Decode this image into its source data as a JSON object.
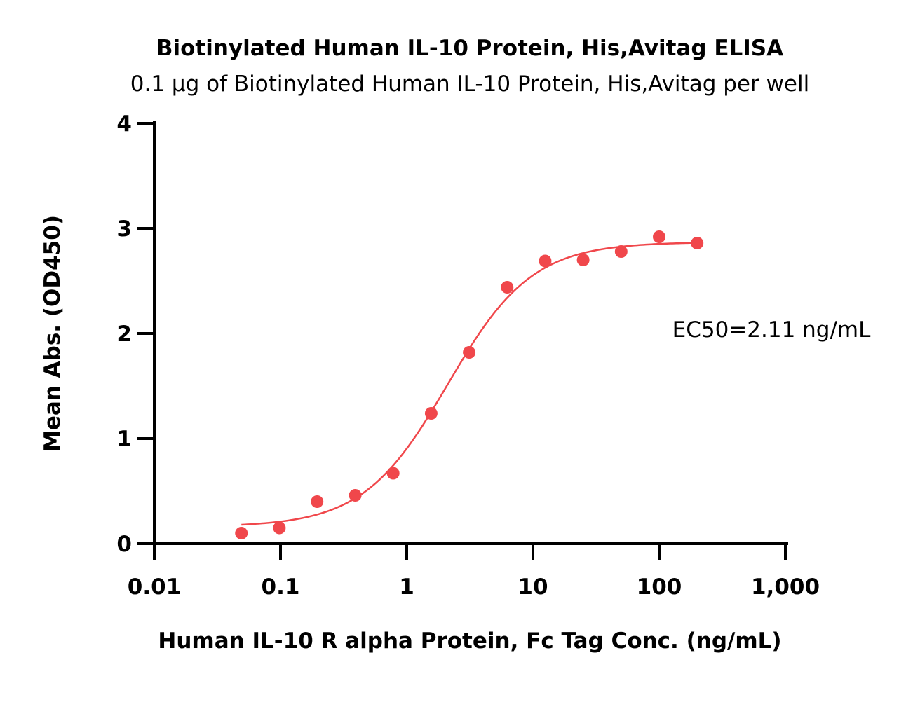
{
  "chart_data": {
    "type": "scatter",
    "title": "Biotinylated Human IL-10 Protein, His,Avitag ELISA",
    "subtitle": "0.1 µg of Biotinylated Human IL-10 Protein, His,Avitag per well",
    "xlabel": "Human IL-10 R alpha Protein, Fc Tag Conc. (ng/mL)",
    "ylabel": "Mean Abs. (OD450)",
    "x_scale": "log",
    "xlim": [
      0.01,
      1000
    ],
    "ylim": [
      0,
      4
    ],
    "x_ticks": [
      {
        "value": 0.01,
        "label": "0.01"
      },
      {
        "value": 0.1,
        "label": "0.1"
      },
      {
        "value": 1,
        "label": "1"
      },
      {
        "value": 10,
        "label": "10"
      },
      {
        "value": 100,
        "label": "100"
      },
      {
        "value": 1000,
        "label": "1,000"
      }
    ],
    "y_ticks": [
      {
        "value": 0,
        "label": "0"
      },
      {
        "value": 1,
        "label": "1"
      },
      {
        "value": 2,
        "label": "2"
      },
      {
        "value": 3,
        "label": "3"
      },
      {
        "value": 4,
        "label": "4"
      }
    ],
    "grid": false,
    "legend": "none",
    "series": [
      {
        "color": "#f0474b",
        "x": [
          0.049,
          0.098,
          0.195,
          0.391,
          0.781,
          1.563,
          3.125,
          6.25,
          12.5,
          25,
          50,
          100,
          200
        ],
        "y": [
          0.1,
          0.15,
          0.4,
          0.46,
          0.67,
          1.24,
          1.82,
          2.44,
          2.69,
          2.7,
          2.78,
          2.92,
          2.86
        ],
        "fit": {
          "model": "4PL",
          "bottom": 0.16,
          "top": 2.87,
          "ec50": 2.11,
          "hill": 1.3,
          "x_range": [
            0.049,
            200
          ]
        }
      }
    ],
    "annotations": [
      {
        "text": "EC50=2.11 ng/mL"
      }
    ]
  }
}
